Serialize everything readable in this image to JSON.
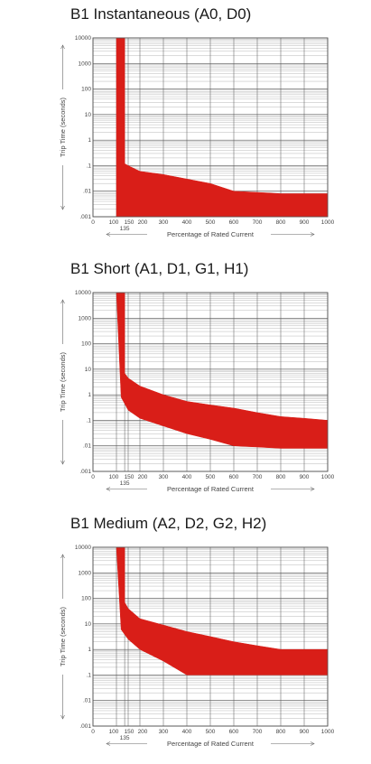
{
  "chart_data": [
    {
      "type": "area",
      "title": "B1 Instantaneous (A0, D0)",
      "xlabel": "Percentage of Rated Current",
      "ylabel": "Trip Time (seconds)",
      "xlim": [
        0,
        1000
      ],
      "ylim": [
        0.001,
        10000
      ],
      "y_scale": "log",
      "x_ticks": [
        "0",
        "100",
        "150",
        "200",
        "300",
        "400",
        "500",
        "600",
        "700",
        "800",
        "900",
        "1000"
      ],
      "x_sub_tick": "135",
      "y_ticks": [
        ".001",
        ".01",
        ".1",
        "1",
        "10",
        "100",
        "1000",
        "10000"
      ],
      "grid": true,
      "fill_color": "#d91e18",
      "series": [
        {
          "x": [
            100,
            135,
            135,
            150,
            200,
            300,
            400,
            500,
            600,
            700,
            800,
            900,
            1000
          ],
          "values": [
            10000,
            10000,
            0.12,
            0.1,
            0.06,
            0.045,
            0.03,
            0.02,
            0.01,
            0.009,
            0.008,
            0.008,
            0.008
          ]
        },
        {
          "x": [
            100,
            1000
          ],
          "values": [
            0.001,
            0.001
          ]
        }
      ]
    },
    {
      "type": "area",
      "title": "B1 Short (A1, D1, G1, H1)",
      "xlabel": "Percentage of Rated Current",
      "ylabel": "Trip Time (seconds)",
      "xlim": [
        0,
        1000
      ],
      "ylim": [
        0.001,
        10000
      ],
      "y_scale": "log",
      "x_ticks": [
        "0",
        "100",
        "150",
        "200",
        "300",
        "400",
        "500",
        "600",
        "700",
        "800",
        "900",
        "1000"
      ],
      "x_sub_tick": "135",
      "y_ticks": [
        ".001",
        ".01",
        ".1",
        "1",
        "10",
        "100",
        "1000",
        "10000"
      ],
      "grid": true,
      "fill_color": "#d91e18",
      "series": [
        {
          "x": [
            100,
            135,
            135,
            150,
            200,
            300,
            400,
            500,
            600,
            700,
            800,
            900,
            1000
          ],
          "values": [
            10000,
            10000,
            7,
            4.5,
            2.2,
            1.0,
            0.55,
            0.4,
            0.3,
            0.2,
            0.14,
            0.12,
            0.1
          ]
        },
        {
          "x": [
            100,
            120,
            135,
            150,
            200,
            300,
            400,
            500,
            600,
            700,
            800,
            900,
            1000
          ],
          "values": [
            10000,
            0.8,
            0.45,
            0.25,
            0.12,
            0.06,
            0.03,
            0.018,
            0.01,
            0.009,
            0.008,
            0.008,
            0.008
          ]
        }
      ]
    },
    {
      "type": "area",
      "title": "B1 Medium (A2, D2, G2, H2)",
      "xlabel": "Percentage of Rated Current",
      "ylabel": "Trip Time (seconds)",
      "xlim": [
        0,
        1000
      ],
      "ylim": [
        0.001,
        10000
      ],
      "y_scale": "log",
      "x_ticks": [
        "0",
        "100",
        "150",
        "200",
        "300",
        "400",
        "500",
        "600",
        "700",
        "800",
        "900",
        "1000"
      ],
      "x_sub_tick": "135",
      "y_ticks": [
        ".001",
        ".01",
        ".1",
        "1",
        "10",
        "100",
        "1000",
        "10000"
      ],
      "grid": true,
      "fill_color": "#d91e18",
      "series": [
        {
          "x": [
            100,
            135,
            135,
            150,
            200,
            300,
            400,
            500,
            600,
            700,
            800,
            900,
            1000
          ],
          "values": [
            10000,
            10000,
            70,
            40,
            16,
            9,
            5,
            3.2,
            2,
            1.4,
            1.0,
            1.0,
            1.0
          ]
        },
        {
          "x": [
            100,
            120,
            150,
            200,
            300,
            400,
            500,
            600,
            700,
            800,
            900,
            1000
          ],
          "values": [
            10000,
            6,
            2.5,
            1.0,
            0.35,
            0.1,
            0.1,
            0.1,
            0.1,
            0.1,
            0.1,
            0.1
          ]
        }
      ]
    }
  ]
}
